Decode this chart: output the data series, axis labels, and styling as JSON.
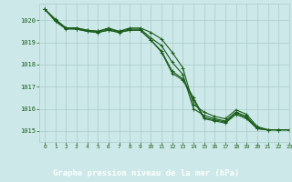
{
  "bg_color": "#cce8e8",
  "plot_bg_color": "#cce8e8",
  "grid_color": "#aacccc",
  "line_color": "#1a5c1a",
  "xlabel": "Graphe pression niveau de la mer (hPa)",
  "xlabel_color": "#1a5c1a",
  "ylabel_color": "#1a5c1a",
  "tick_color": "#1a5c1a",
  "bottom_bar_color": "#2a6e2a",
  "ylim": [
    1014.5,
    1020.75
  ],
  "xlim": [
    -0.5,
    23
  ],
  "yticks": [
    1015,
    1016,
    1017,
    1018,
    1019,
    1020
  ],
  "xticks": [
    0,
    1,
    2,
    3,
    4,
    5,
    6,
    7,
    8,
    9,
    10,
    11,
    12,
    13,
    14,
    15,
    16,
    17,
    18,
    19,
    20,
    21,
    22,
    23
  ],
  "series": [
    [
      1020.5,
      1020.05,
      1019.65,
      1019.65,
      1019.55,
      1019.5,
      1019.65,
      1019.5,
      1019.65,
      1019.65,
      1019.45,
      1019.15,
      1018.55,
      1017.85,
      1016.2,
      1015.85,
      1015.65,
      1015.55,
      1015.95,
      1015.75,
      1015.2,
      1015.05,
      1015.05,
      1015.05
    ],
    [
      1020.5,
      1020.0,
      1019.65,
      1019.65,
      1019.55,
      1019.5,
      1019.6,
      1019.5,
      1019.6,
      1019.6,
      1019.2,
      1018.85,
      1018.1,
      1017.55,
      1016.0,
      1015.7,
      1015.55,
      1015.45,
      1015.85,
      1015.65,
      1015.15,
      1015.05,
      1015.05,
      1015.05
    ],
    [
      1020.5,
      1020.0,
      1019.65,
      1019.6,
      1019.5,
      1019.45,
      1019.55,
      1019.45,
      1019.55,
      1019.55,
      1019.1,
      1018.6,
      1017.7,
      1017.35,
      1016.5,
      1015.6,
      1015.5,
      1015.4,
      1015.8,
      1015.6,
      1015.1,
      1015.05,
      1015.05,
      1015.05
    ],
    [
      1020.5,
      1019.95,
      1019.6,
      1019.6,
      1019.5,
      1019.45,
      1019.55,
      1019.45,
      1019.55,
      1019.55,
      1019.1,
      1018.55,
      1017.6,
      1017.3,
      1016.4,
      1015.55,
      1015.45,
      1015.35,
      1015.75,
      1015.55,
      1015.1,
      1015.05,
      1015.05,
      1015.05
    ]
  ],
  "marker": "+",
  "markersize": 3,
  "linewidth": 0.8,
  "figsize": [
    3.2,
    2.0
  ],
  "dpi": 100
}
